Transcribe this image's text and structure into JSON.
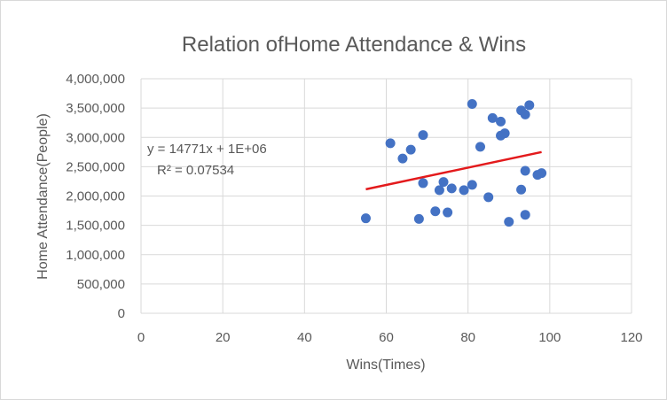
{
  "chart_data": {
    "type": "scatter",
    "title": "Relation ofHome Attendance & Wins",
    "xlabel": "Wins(Times)",
    "ylabel": "Home Attendance(People)",
    "xlim": [
      0,
      120
    ],
    "ylim": [
      0,
      4000000
    ],
    "x_ticks": [
      0,
      20,
      40,
      60,
      80,
      100,
      120
    ],
    "y_ticks": [
      0,
      500000,
      1000000,
      1500000,
      2000000,
      2500000,
      3000000,
      3500000,
      4000000
    ],
    "x_tick_labels": [
      "0",
      "20",
      "40",
      "60",
      "80",
      "100",
      "120"
    ],
    "y_tick_labels": [
      "0",
      "500,000",
      "1,000,000",
      "1,500,000",
      "2,000,000",
      "2,500,000",
      "3,000,000",
      "3,500,000",
      "4,000,000"
    ],
    "grid": true,
    "legend": "none",
    "point_color": "#4472c4",
    "points": [
      {
        "x": 55,
        "y": 1620000
      },
      {
        "x": 61,
        "y": 2900000
      },
      {
        "x": 64,
        "y": 2640000
      },
      {
        "x": 66,
        "y": 2790000
      },
      {
        "x": 68,
        "y": 1610000
      },
      {
        "x": 69,
        "y": 3040000
      },
      {
        "x": 69,
        "y": 2220000
      },
      {
        "x": 72,
        "y": 1740000
      },
      {
        "x": 73,
        "y": 2100000
      },
      {
        "x": 74,
        "y": 2240000
      },
      {
        "x": 75,
        "y": 1720000
      },
      {
        "x": 76,
        "y": 2130000
      },
      {
        "x": 79,
        "y": 2100000
      },
      {
        "x": 81,
        "y": 3570000
      },
      {
        "x": 81,
        "y": 2190000
      },
      {
        "x": 83,
        "y": 2840000
      },
      {
        "x": 85,
        "y": 1980000
      },
      {
        "x": 86,
        "y": 3330000
      },
      {
        "x": 88,
        "y": 3270000
      },
      {
        "x": 88,
        "y": 3030000
      },
      {
        "x": 89,
        "y": 3070000
      },
      {
        "x": 90,
        "y": 1560000
      },
      {
        "x": 93,
        "y": 3460000
      },
      {
        "x": 93,
        "y": 2110000
      },
      {
        "x": 94,
        "y": 3390000
      },
      {
        "x": 94,
        "y": 2430000
      },
      {
        "x": 94,
        "y": 1680000
      },
      {
        "x": 95,
        "y": 3550000
      },
      {
        "x": 97,
        "y": 2360000
      },
      {
        "x": 98,
        "y": 2390000
      }
    ],
    "trendline": {
      "type": "linear",
      "color": "#e31a1c",
      "x_start": 55,
      "x_end": 98,
      "y_start": 2115000,
      "y_end": 2750000,
      "equation": "y = 14771x + 1E+06",
      "r_squared": "R² = 0.07534"
    }
  }
}
